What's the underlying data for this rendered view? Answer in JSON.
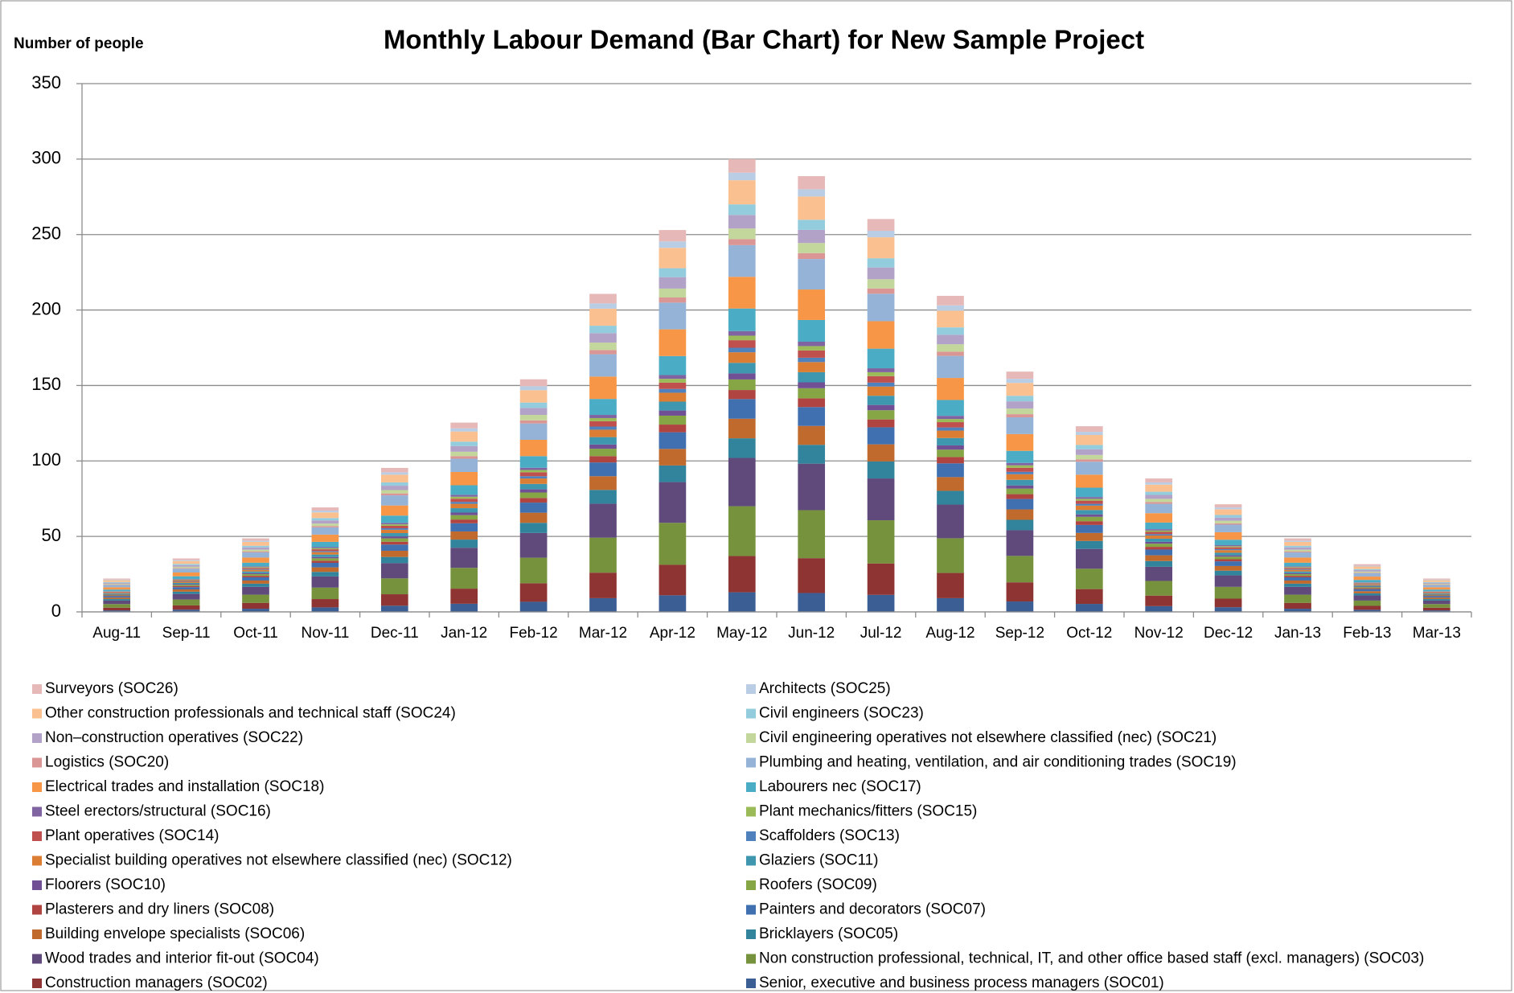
{
  "chart_data": {
    "type": "stacked_bar",
    "title": "Monthly Labour Demand (Bar Chart) for New Sample Project",
    "y_label": "Number of people",
    "categories": [
      "Aug-11",
      "Sep-11",
      "Oct-11",
      "Nov-11",
      "Dec-11",
      "Jan-12",
      "Feb-12",
      "Mar-12",
      "Apr-12",
      "May-12",
      "Jun-12",
      "Jul-12",
      "Aug-12",
      "Sep-12",
      "Oct-12",
      "Nov-12",
      "Dec-12",
      "Jan-13",
      "Feb-13",
      "Mar-13"
    ],
    "ylim": [
      0,
      350
    ],
    "yticks": [
      0,
      50,
      100,
      150,
      200,
      250,
      300,
      350
    ],
    "grid": true,
    "series": [
      {
        "name": "Senior, executive and business process managers (SOC01)",
        "color": "#3B5E94",
        "values": [
          1.0,
          1.5,
          2.1,
          3.0,
          4.1,
          5.4,
          6.7,
          9.1,
          11,
          13,
          12.5,
          11.3,
          9.1,
          6.9,
          5.3,
          3.8,
          3.1,
          2.1,
          1.4,
          1.0
        ]
      },
      {
        "name": "Construction managers (SOC02)",
        "color": "#8E3533",
        "values": [
          1.8,
          2.8,
          3.9,
          5.5,
          7.6,
          10,
          12.3,
          16.9,
          20.2,
          24,
          23.1,
          20.8,
          16.7,
          12.7,
          9.8,
          7,
          5.7,
          3.9,
          2.6,
          1.8
        ]
      },
      {
        "name": "Non construction professional, technical, IT, and other office based staff (excl. managers) (SOC03)",
        "color": "#76923C",
        "values": [
          2.4,
          3.9,
          5.4,
          7.6,
          10.5,
          13.8,
          16.9,
          23.2,
          27.8,
          33,
          31.8,
          28.6,
          23,
          17.5,
          13.5,
          9.7,
          7.8,
          5.4,
          3.5,
          2.4
        ]
      },
      {
        "name": "Wood trades and interior fit-out (SOC04)",
        "color": "#5F4A7B",
        "values": [
          2.3,
          3.7,
          5.2,
          7.4,
          10.1,
          13.3,
          16.4,
          22.5,
          27,
          32,
          30.8,
          27.7,
          22.3,
          17,
          13.1,
          9.4,
          7.6,
          5.2,
          3.4,
          2.3
        ]
      },
      {
        "name": "Bricklayers (SOC05)",
        "color": "#31849B",
        "values": [
          1.0,
          1.5,
          2.1,
          3.0,
          4.1,
          5.4,
          6.7,
          9.1,
          11,
          13,
          12.5,
          11.3,
          9.1,
          6.9,
          5.3,
          3.8,
          3.1,
          2.1,
          1.4,
          1.0
        ]
      },
      {
        "name": "Building envelope specialists (SOC06)",
        "color": "#C06A2E",
        "values": [
          1.0,
          1.5,
          2.1,
          3.0,
          4.1,
          5.4,
          6.7,
          9.1,
          11,
          13,
          12.5,
          11.3,
          9.1,
          6.9,
          5.3,
          3.8,
          3.1,
          2.1,
          1.4,
          1.0
        ]
      },
      {
        "name": "Painters and decorators (SOC07)",
        "color": "#4070B0",
        "values": [
          1.0,
          1.5,
          2.1,
          3.0,
          4.1,
          5.4,
          6.7,
          9.1,
          11,
          13,
          12.5,
          11.3,
          9.1,
          6.9,
          5.3,
          3.8,
          3.1,
          2.1,
          1.4,
          1.0
        ]
      },
      {
        "name": "Plasterers and dry liners (SOC08)",
        "color": "#B04440",
        "values": [
          0.4,
          0.7,
          1.0,
          1.4,
          1.9,
          2.5,
          3.1,
          4.2,
          5.1,
          6,
          5.8,
          5.2,
          4.2,
          3.2,
          2.5,
          1.8,
          1.4,
          1.0,
          0.6,
          0.4
        ]
      },
      {
        "name": "Roofers (SOC09)",
        "color": "#86A545",
        "values": [
          0.5,
          0.8,
          1.1,
          1.6,
          2.2,
          2.9,
          3.6,
          4.9,
          5.9,
          7,
          6.7,
          6.1,
          4.9,
          3.7,
          2.9,
          2.1,
          1.7,
          1.1,
          0.7,
          0.5
        ]
      },
      {
        "name": "Floorers (SOC10)",
        "color": "#704F94",
        "values": [
          0.3,
          0.5,
          0.7,
          0.9,
          1.3,
          1.7,
          2.1,
          2.8,
          3.4,
          4,
          3.9,
          3.5,
          2.8,
          2.1,
          1.6,
          1.2,
          0.9,
          0.7,
          0.4,
          0.3
        ]
      },
      {
        "name": "Glaziers (SOC11)",
        "color": "#3E97AF",
        "values": [
          0.5,
          0.8,
          1.1,
          1.6,
          2.2,
          2.9,
          3.6,
          4.9,
          5.9,
          7,
          6.7,
          6.1,
          4.9,
          3.7,
          2.9,
          2.1,
          1.7,
          1.1,
          0.7,
          0.5
        ]
      },
      {
        "name": "Specialist building operatives not elsewhere classified (nec) (SOC12)",
        "color": "#DB7E33",
        "values": [
          0.5,
          0.8,
          1.1,
          1.6,
          2.2,
          2.9,
          3.6,
          4.9,
          5.9,
          7,
          6.7,
          6.1,
          4.9,
          3.7,
          2.9,
          2.1,
          1.7,
          1.1,
          0.7,
          0.5
        ]
      },
      {
        "name": "Scaffolders (SOC13)",
        "color": "#4F81BD",
        "values": [
          0.2,
          0.4,
          0.5,
          0.7,
          1.0,
          1.3,
          1.5,
          2.1,
          2.5,
          3,
          2.9,
          2.6,
          2.1,
          1.6,
          1.2,
          0.9,
          0.7,
          0.5,
          0.3,
          0.2
        ]
      },
      {
        "name": "Plant operatives (SOC14)",
        "color": "#C0504D",
        "values": [
          0.4,
          0.6,
          0.8,
          1.2,
          1.6,
          2.1,
          2.6,
          3.5,
          4.2,
          5,
          4.8,
          4.3,
          3.5,
          2.7,
          2.1,
          1.5,
          1.2,
          0.8,
          0.5,
          0.4
        ]
      },
      {
        "name": "Plant mechanics/fitters (SOC15)",
        "color": "#9BBB59",
        "values": [
          0.2,
          0.4,
          0.5,
          0.7,
          1.0,
          1.3,
          1.5,
          2.1,
          2.5,
          3,
          2.9,
          2.6,
          2.1,
          1.6,
          1.2,
          0.9,
          0.7,
          0.5,
          0.3,
          0.2
        ]
      },
      {
        "name": "Steel erectors/structural (SOC16)",
        "color": "#8064A2",
        "values": [
          0.2,
          0.4,
          0.5,
          0.7,
          1.0,
          1.3,
          1.5,
          2.1,
          2.5,
          3,
          2.9,
          2.6,
          2.1,
          1.6,
          1.2,
          0.9,
          0.7,
          0.5,
          0.3,
          0.2
        ]
      },
      {
        "name": "Labourers nec (SOC17)",
        "color": "#4BACC6",
        "values": [
          1.1,
          1.8,
          2.4,
          3.5,
          4.8,
          6.3,
          7.7,
          10.6,
          12.6,
          15,
          14.4,
          13,
          10.5,
          8,
          6.2,
          4.4,
          3.6,
          2.4,
          1.6,
          1.1
        ]
      },
      {
        "name": "Electrical trades and installation (SOC18)",
        "color": "#F79646",
        "values": [
          1.5,
          2.5,
          3.4,
          4.8,
          6.7,
          8.8,
          10.8,
          14.8,
          17.7,
          21,
          20.2,
          18.2,
          14.6,
          11.1,
          8.6,
          6.2,
          5,
          3.4,
          2.2,
          1.5
        ]
      },
      {
        "name": "Plumbing and heating, ventilation, and air conditioning trades (SOC19)",
        "color": "#95B3D7",
        "values": [
          1.5,
          2.5,
          3.4,
          4.8,
          6.7,
          8.8,
          10.8,
          14.8,
          17.7,
          21,
          20.2,
          18.2,
          14.6,
          11.1,
          8.6,
          6.2,
          5,
          3.4,
          2.2,
          1.5
        ]
      },
      {
        "name": "Logistics (SOC20)",
        "color": "#D99694",
        "values": [
          0.3,
          0.5,
          0.7,
          0.9,
          1.3,
          1.7,
          2.1,
          2.8,
          3.4,
          4,
          3.9,
          3.5,
          2.8,
          2.1,
          1.6,
          1.2,
          0.9,
          0.7,
          0.4,
          0.3
        ]
      },
      {
        "name": "Civil engineering operatives not elsewhere classified (nec) (SOC21)",
        "color": "#C3D69B",
        "values": [
          0.5,
          0.8,
          1.1,
          1.6,
          2.2,
          2.9,
          3.6,
          4.9,
          5.9,
          7,
          6.7,
          6.1,
          4.9,
          3.7,
          2.9,
          2.1,
          1.7,
          1.1,
          0.7,
          0.5
        ]
      },
      {
        "name": "Non–construction operatives (SOC22)",
        "color": "#B3A2C7",
        "values": [
          0.7,
          1.1,
          1.5,
          2.1,
          2.9,
          3.8,
          4.6,
          6.3,
          7.6,
          9,
          8.7,
          7.8,
          6.3,
          4.8,
          3.7,
          2.6,
          2.1,
          1.5,
          1.0,
          0.7
        ]
      },
      {
        "name": "Civil engineers (SOC23)",
        "color": "#93CDDD",
        "values": [
          0.5,
          0.8,
          1.1,
          1.6,
          2.2,
          2.9,
          3.6,
          4.9,
          5.9,
          7,
          6.7,
          6.1,
          4.9,
          3.7,
          2.9,
          2.1,
          1.7,
          1.1,
          0.7,
          0.5
        ]
      },
      {
        "name": "Other construction professionals and technical staff (SOC24)",
        "color": "#FAC090",
        "values": [
          1.2,
          1.9,
          2.6,
          3.7,
          5.1,
          6.7,
          8.2,
          11.3,
          13.5,
          16,
          15.4,
          13.9,
          11.1,
          8.5,
          6.6,
          4.7,
          3.8,
          2.6,
          1.7,
          1.2
        ]
      },
      {
        "name": "Architects (SOC25)",
        "color": "#B9CDE5",
        "values": [
          0.4,
          0.6,
          0.8,
          1.2,
          1.6,
          2.1,
          2.6,
          3.5,
          4.2,
          5,
          4.8,
          4.3,
          3.5,
          2.7,
          2.1,
          1.5,
          1.2,
          0.8,
          0.5,
          0.4
        ]
      },
      {
        "name": "Surveyors (SOC26)",
        "color": "#E6B9B8",
        "values": [
          0.7,
          1.1,
          1.5,
          2.1,
          2.9,
          3.8,
          4.6,
          6.3,
          7.6,
          9,
          8.7,
          7.8,
          6.3,
          4.8,
          3.7,
          2.6,
          2.1,
          1.5,
          1.0,
          0.7
        ]
      }
    ]
  }
}
